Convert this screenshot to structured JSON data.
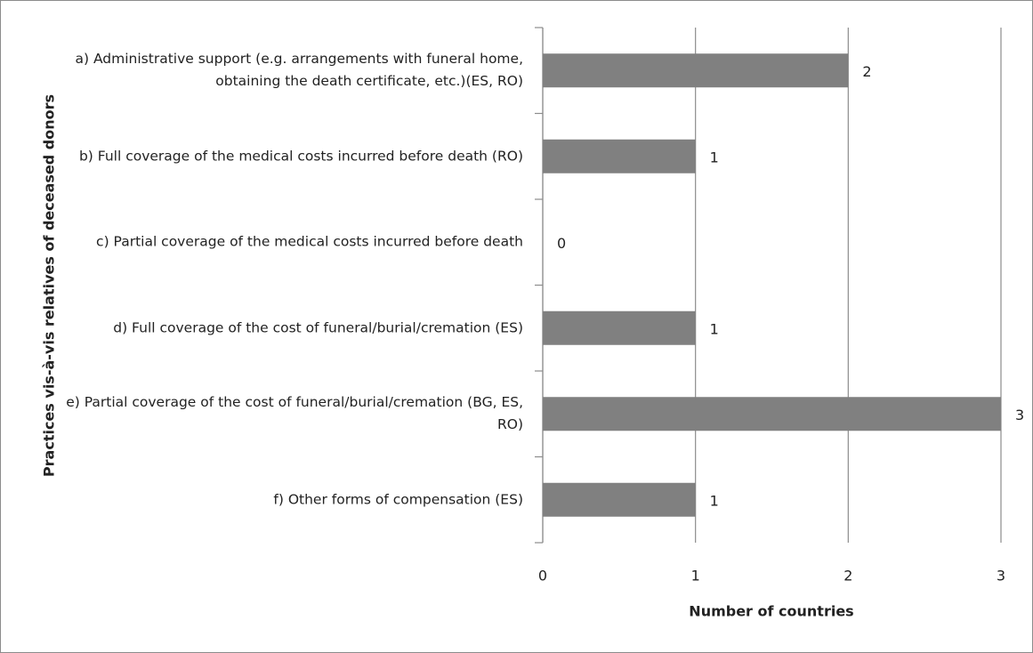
{
  "chart_data": {
    "type": "bar",
    "orientation": "horizontal",
    "categories": [
      "a) Administrative support (e.g. arrangements with funeral home, obtaining the death certificate, etc.)(ES, RO)",
      "b) Full coverage of the medical costs incurred before death (RO)",
      "c) Partial coverage of the medical costs incurred before death",
      "d) Full coverage of the cost of funeral/burial/cremation (ES)",
      "e) Partial coverage of the cost of funeral/burial/cremation (BG, ES, RO)",
      "f) Other forms of compensation (ES)"
    ],
    "values": [
      2,
      1,
      0,
      1,
      3,
      1
    ],
    "color": "#808080",
    "xlim": [
      0,
      3
    ],
    "xticks": [
      0,
      1,
      2,
      3
    ],
    "grid": true,
    "x_label": "Number of countries",
    "y_label": "Practices  vis-à-vis  relatives of deceased donors"
  }
}
